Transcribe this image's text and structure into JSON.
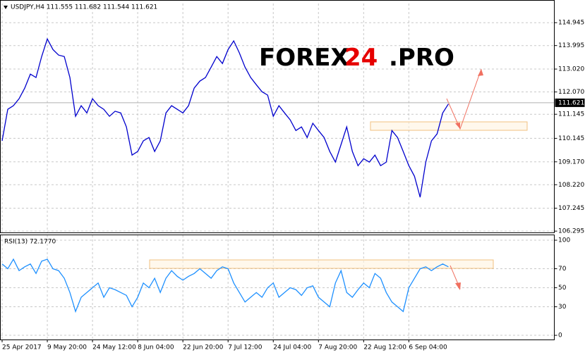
{
  "chart_data": [
    {
      "type": "line",
      "title": "USDJPY,H4  111.555 111.682 111.544 111.621",
      "color": "#0000cd",
      "values": [
        110.04,
        111.35,
        111.5,
        111.79,
        112.23,
        112.81,
        112.67,
        113.54,
        114.27,
        113.83,
        113.6,
        113.54,
        112.67,
        111.06,
        111.5,
        111.2,
        111.79,
        111.5,
        111.35,
        111.06,
        111.27,
        111.2,
        110.62,
        109.45,
        109.6,
        110.04,
        110.18,
        109.6,
        110.04,
        111.2,
        111.5,
        111.35,
        111.2,
        111.5,
        112.23,
        112.52,
        112.67,
        113.1,
        113.54,
        113.25,
        113.83,
        114.19,
        113.69,
        113.1,
        112.67,
        112.37,
        112.08,
        111.94,
        111.06,
        111.5,
        111.2,
        110.91,
        110.47,
        110.62,
        110.18,
        110.77,
        110.47,
        110.18,
        109.6,
        109.16,
        109.89,
        110.62,
        109.6,
        109.01,
        109.3,
        109.16,
        109.45,
        109.01,
        109.16,
        110.47,
        110.18,
        109.6,
        109.01,
        108.57,
        107.7,
        109.16,
        110.04,
        110.33,
        111.2,
        111.57
      ],
      "last_price": 111.621,
      "xlim": [
        0,
        97.75
      ],
      "xticks": [
        {
          "value": 0,
          "label": "25 Apr 2017"
        },
        {
          "value": 8,
          "label": "9 May 20:00"
        },
        {
          "value": 16,
          "label": "24 May 12:00"
        },
        {
          "value": 24,
          "label": "8 Jun 04:00"
        },
        {
          "value": 32,
          "label": "22 Jun 20:00"
        },
        {
          "value": 40,
          "label": "7 Jul 12:00"
        },
        {
          "value": 48,
          "label": "24 Jul 04:00"
        },
        {
          "value": 56,
          "label": "7 Aug 20:00"
        },
        {
          "value": 64,
          "label": "22 Aug 12:00"
        },
        {
          "value": 72,
          "label": "6 Sep 04:00"
        }
      ],
      "ylim": [
        106.24,
        115.74
      ],
      "yticks": [
        114.945,
        113.995,
        {
          "value": 113.02,
          "label": "113.020"
        },
        {
          "value": 112.07,
          "label": "112.070"
        },
        111.145,
        110.145,
        {
          "value": 109.17,
          "label": "109.170"
        },
        {
          "value": 108.22,
          "label": "108.220"
        },
        107.245,
        106.295
      ],
      "grid": true
    },
    {
      "type": "line",
      "title": "RSI(13) 72.1770",
      "color": "#1e90ff",
      "values": [
        75,
        70,
        80,
        68,
        72,
        75,
        65,
        78,
        80,
        70,
        68,
        60,
        45,
        25,
        40,
        45,
        50,
        55,
        40,
        50,
        48,
        45,
        42,
        30,
        40,
        55,
        50,
        60,
        45,
        60,
        68,
        62,
        58,
        62,
        65,
        70,
        65,
        60,
        68,
        72,
        70,
        55,
        45,
        35,
        40,
        45,
        40,
        50,
        55,
        40,
        45,
        50,
        48,
        42,
        50,
        52,
        40,
        35,
        30,
        55,
        68,
        45,
        40,
        48,
        55,
        50,
        65,
        60,
        45,
        35,
        30,
        25,
        50,
        60,
        70,
        72,
        68,
        72,
        75,
        72
      ],
      "xlim": [
        0,
        97.75
      ],
      "ylim": [
        -4.4,
        105.2
      ],
      "yticks": [
        100,
        70,
        50,
        30,
        0
      ],
      "grid": true
    }
  ],
  "watermark": {
    "left": "FOREX",
    "highlight": "24",
    "right": ".PRO"
  }
}
